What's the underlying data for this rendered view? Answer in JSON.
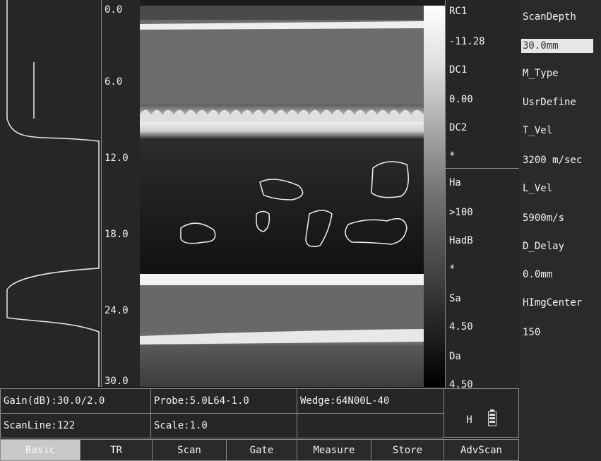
{
  "depth_scale": [
    "0.0",
    "6.0",
    "12.0",
    "18.0",
    "24.0",
    "30.0"
  ],
  "readouts": [
    "RC1",
    "-11.28",
    "DC1",
    "0.00",
    "DC2",
    "*",
    "Ha",
    ">100",
    "HadB",
    "*",
    "Sa",
    "4.50",
    "Da",
    "4.50"
  ],
  "mode_indicator": "H",
  "parameters": [
    {
      "label": "ScanDepth",
      "value": "30.0mm"
    },
    {
      "label": "M_Type",
      "value": "UsrDefine"
    },
    {
      "label": "T_Vel",
      "value": "3200 m/sec"
    },
    {
      "label": "L_Vel",
      "value": "5900m/s"
    },
    {
      "label": "D_Delay",
      "value": "0.0mm"
    },
    {
      "label": "HImgCenter",
      "value": "150"
    }
  ],
  "status": {
    "gain": "Gain(dB):30.0/2.0",
    "probe": "Probe:5.0L64-1.0",
    "wedge": "Wedge:64N00L-40",
    "scan_line": "ScanLine:122",
    "scale": "Scale:1.0"
  },
  "tabs": [
    "Basic",
    "TR",
    "Scan",
    "Gate",
    "Measure",
    "Store",
    "AdvScan"
  ]
}
